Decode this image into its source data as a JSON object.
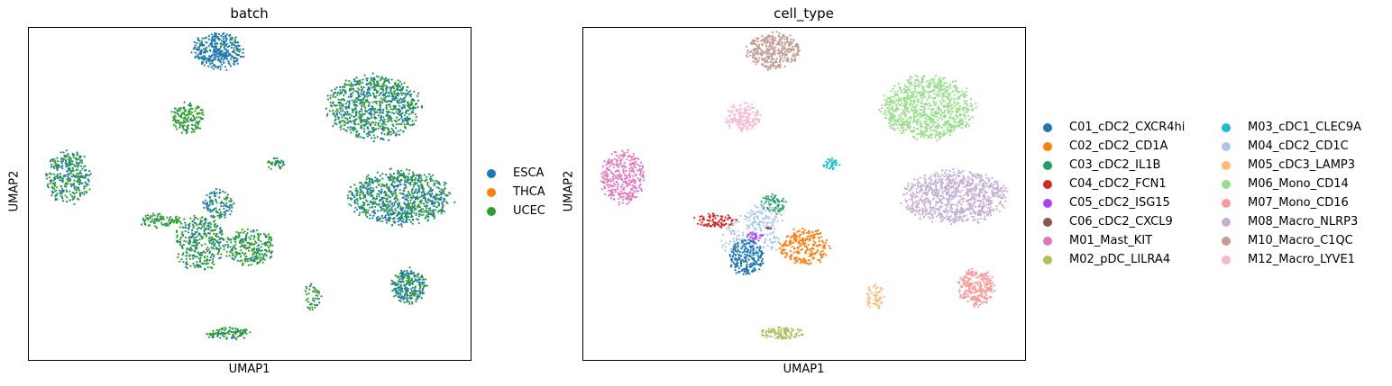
{
  "chart_data": [
    {
      "type": "scatter",
      "title": "batch",
      "xlabel": "UMAP1",
      "ylabel": "UMAP2",
      "grid": false,
      "legend_position": "right",
      "legend": [
        {
          "label": "ESCA",
          "color": "#1f77b4"
        },
        {
          "label": "THCA",
          "color": "#ff7f0e"
        },
        {
          "label": "UCEC",
          "color": "#2ca02c"
        }
      ],
      "clusters": [
        {
          "color": "#1f77b4",
          "mix": "#2ca02c",
          "mix_ratio": 0.1,
          "x": 0.43,
          "y": 0.93,
          "rx": 0.06,
          "ry": 0.055,
          "n": 360
        },
        {
          "color": "#2ca02c",
          "mix": "#1f77b4",
          "mix_ratio": 0.45,
          "x": 0.78,
          "y": 0.76,
          "rx": 0.105,
          "ry": 0.095,
          "n": 900
        },
        {
          "color": "#2ca02c",
          "mix": "#1f77b4",
          "mix_ratio": 0.08,
          "x": 0.36,
          "y": 0.73,
          "rx": 0.04,
          "ry": 0.045,
          "n": 160
        },
        {
          "color": "#2ca02c",
          "mix": "#1f77b4",
          "mix_ratio": 0.45,
          "x": 0.09,
          "y": 0.55,
          "rx": 0.05,
          "ry": 0.08,
          "n": 330
        },
        {
          "color": "#2ca02c",
          "mix": "#1f77b4",
          "mix_ratio": 0.2,
          "x": 0.56,
          "y": 0.59,
          "rx": 0.02,
          "ry": 0.018,
          "n": 35
        },
        {
          "color": "#2ca02c",
          "mix": "#1f77b4",
          "mix_ratio": 0.5,
          "x": 0.84,
          "y": 0.49,
          "rx": 0.115,
          "ry": 0.08,
          "n": 900
        },
        {
          "color": "#1f77b4",
          "mix": "#2ca02c",
          "mix_ratio": 0.3,
          "x": 0.43,
          "y": 0.47,
          "rx": 0.035,
          "ry": 0.045,
          "n": 120
        },
        {
          "color": "#2ca02c",
          "mix": "#1f77b4",
          "mix_ratio": 0.1,
          "x": 0.3,
          "y": 0.42,
          "rx": 0.05,
          "ry": 0.022,
          "n": 90
        },
        {
          "color": "#2ca02c",
          "mix": "#1f77b4",
          "mix_ratio": 0.3,
          "x": 0.39,
          "y": 0.35,
          "rx": 0.06,
          "ry": 0.08,
          "n": 350
        },
        {
          "color": "#2ca02c",
          "mix": "#1f77b4",
          "mix_ratio": 0.2,
          "x": 0.5,
          "y": 0.34,
          "rx": 0.055,
          "ry": 0.055,
          "n": 250
        },
        {
          "color": "#2ca02c",
          "mix": "#1f77b4",
          "mix_ratio": 0.25,
          "x": 0.64,
          "y": 0.19,
          "rx": 0.022,
          "ry": 0.04,
          "n": 50
        },
        {
          "color": "#2ca02c",
          "mix": "#1f77b4",
          "mix_ratio": 0.5,
          "x": 0.86,
          "y": 0.22,
          "rx": 0.04,
          "ry": 0.055,
          "n": 260
        },
        {
          "color": "#2ca02c",
          "mix": "#1f77b4",
          "mix_ratio": 0.2,
          "x": 0.45,
          "y": 0.08,
          "rx": 0.05,
          "ry": 0.018,
          "n": 110
        }
      ]
    },
    {
      "type": "scatter",
      "title": "cell_type",
      "xlabel": "UMAP1",
      "ylabel": "UMAP2",
      "grid": false,
      "legend_position": "right",
      "legend": [
        {
          "label": "C01_cDC2_CXCR4hi",
          "color": "#1f77b4"
        },
        {
          "label": "C02_cDC2_CD1A",
          "color": "#ff7f0e"
        },
        {
          "label": "C03_cDC2_IL1B",
          "color": "#279e68"
        },
        {
          "label": "C04_cDC2_FCN1",
          "color": "#d62728"
        },
        {
          "label": "C05_cDC2_ISG15",
          "color": "#aa40fc"
        },
        {
          "label": "C06_cDC2_CXCL9",
          "color": "#8c564b"
        },
        {
          "label": "M01_Mast_KIT",
          "color": "#e377c2"
        },
        {
          "label": "M02_pDC_LILRA4",
          "color": "#b5bd61"
        },
        {
          "label": "M03_cDC1_CLEC9A",
          "color": "#17becf"
        },
        {
          "label": "M04_cDC2_CD1C",
          "color": "#aec7e8"
        },
        {
          "label": "M05_cDC3_LAMP3",
          "color": "#ffbb78"
        },
        {
          "label": "M06_Mono_CD14",
          "color": "#98df8a"
        },
        {
          "label": "M07_Mono_CD16",
          "color": "#ff9896"
        },
        {
          "label": "M08_Macro_NLRP3",
          "color": "#c5b0d5"
        },
        {
          "label": "M10_Macro_C1QC",
          "color": "#c49c94"
        },
        {
          "label": "M12_Macro_LYVE1",
          "color": "#f7b6d2"
        }
      ],
      "clusters": [
        {
          "color": "#c49c94",
          "x": 0.43,
          "y": 0.93,
          "rx": 0.06,
          "ry": 0.055,
          "n": 360
        },
        {
          "color": "#98df8a",
          "x": 0.78,
          "y": 0.76,
          "rx": 0.105,
          "ry": 0.095,
          "n": 900
        },
        {
          "color": "#f7b6d2",
          "x": 0.36,
          "y": 0.73,
          "rx": 0.04,
          "ry": 0.045,
          "n": 160
        },
        {
          "color": "#e377c2",
          "x": 0.09,
          "y": 0.55,
          "rx": 0.05,
          "ry": 0.08,
          "n": 330
        },
        {
          "color": "#17becf",
          "x": 0.56,
          "y": 0.59,
          "rx": 0.02,
          "ry": 0.018,
          "n": 35
        },
        {
          "color": "#c5b0d5",
          "x": 0.84,
          "y": 0.49,
          "rx": 0.115,
          "ry": 0.08,
          "n": 900
        },
        {
          "color": "#279e68",
          "x": 0.43,
          "y": 0.47,
          "rx": 0.03,
          "ry": 0.03,
          "n": 70
        },
        {
          "color": "#aec7e8",
          "x": 0.41,
          "y": 0.43,
          "rx": 0.04,
          "ry": 0.04,
          "n": 80
        },
        {
          "color": "#d62728",
          "x": 0.3,
          "y": 0.42,
          "rx": 0.05,
          "ry": 0.022,
          "n": 90
        },
        {
          "color": "#aec7e8",
          "x": 0.38,
          "y": 0.37,
          "rx": 0.07,
          "ry": 0.07,
          "n": 180
        },
        {
          "color": "#aa40fc",
          "x": 0.39,
          "y": 0.37,
          "rx": 0.02,
          "ry": 0.015,
          "n": 30
        },
        {
          "color": "#8c564b",
          "x": 0.42,
          "y": 0.39,
          "rx": 0.01,
          "ry": 0.01,
          "n": 8
        },
        {
          "color": "#1f77b4",
          "x": 0.37,
          "y": 0.31,
          "rx": 0.04,
          "ry": 0.055,
          "n": 220
        },
        {
          "color": "#ff7f0e",
          "x": 0.5,
          "y": 0.34,
          "rx": 0.055,
          "ry": 0.055,
          "n": 250
        },
        {
          "color": "#ffbb78",
          "x": 0.66,
          "y": 0.19,
          "rx": 0.022,
          "ry": 0.04,
          "n": 60
        },
        {
          "color": "#ff9896",
          "x": 0.89,
          "y": 0.22,
          "rx": 0.04,
          "ry": 0.055,
          "n": 260
        },
        {
          "color": "#b5bd61",
          "x": 0.45,
          "y": 0.08,
          "rx": 0.05,
          "ry": 0.018,
          "n": 110
        }
      ]
    }
  ]
}
